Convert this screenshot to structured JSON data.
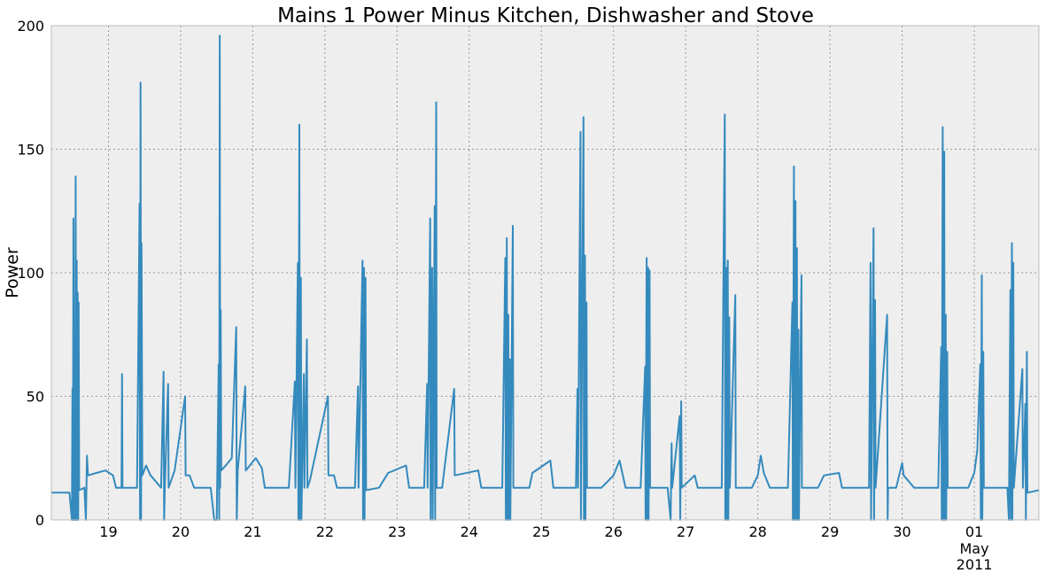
{
  "chart_data": {
    "type": "line",
    "title": "Mains 1 Power Minus Kitchen, Dishwasher and Stove",
    "xlabel": "",
    "ylabel": "Power",
    "ylim": [
      0,
      200
    ],
    "xlim": [
      "2011-04-18T05:00",
      "2011-05-01T21:30"
    ],
    "grid": true,
    "legend": "none",
    "background_color": "#eeeeee",
    "line_color": "#348abd",
    "y_ticks": [
      0,
      50,
      100,
      150,
      200
    ],
    "x_ticks": [
      {
        "at": "2011-04-19",
        "label": "19",
        "sublabel": ""
      },
      {
        "at": "2011-04-20",
        "label": "20",
        "sublabel": ""
      },
      {
        "at": "2011-04-21",
        "label": "21",
        "sublabel": ""
      },
      {
        "at": "2011-04-22",
        "label": "22",
        "sublabel": ""
      },
      {
        "at": "2011-04-23",
        "label": "23",
        "sublabel": ""
      },
      {
        "at": "2011-04-24",
        "label": "24",
        "sublabel": ""
      },
      {
        "at": "2011-04-25",
        "label": "25",
        "sublabel": ""
      },
      {
        "at": "2011-04-26",
        "label": "26",
        "sublabel": ""
      },
      {
        "at": "2011-04-27",
        "label": "27",
        "sublabel": ""
      },
      {
        "at": "2011-04-28",
        "label": "28",
        "sublabel": ""
      },
      {
        "at": "2011-04-29",
        "label": "29",
        "sublabel": ""
      },
      {
        "at": "2011-04-30",
        "label": "30",
        "sublabel": ""
      },
      {
        "at": "2011-05-01",
        "label": "01",
        "sublabel": "May\n2011"
      }
    ],
    "series": [
      {
        "name": "",
        "points": [
          [
            "2011-04-18T05:00",
            11
          ],
          [
            "2011-04-18T11:00",
            11
          ],
          [
            "2011-04-18T11:50",
            0
          ],
          [
            "2011-04-18T12:00",
            53
          ],
          [
            "2011-04-18T12:10",
            0
          ],
          [
            "2011-04-18T12:20",
            122
          ],
          [
            "2011-04-18T12:30",
            0
          ],
          [
            "2011-04-18T12:40",
            65
          ],
          [
            "2011-04-18T12:55",
            0
          ],
          [
            "2011-04-18T13:05",
            139
          ],
          [
            "2011-04-18T13:15",
            0
          ],
          [
            "2011-04-18T13:25",
            105
          ],
          [
            "2011-04-18T13:35",
            0
          ],
          [
            "2011-04-18T13:45",
            92
          ],
          [
            "2011-04-18T13:55",
            0
          ],
          [
            "2011-04-18T14:05",
            88
          ],
          [
            "2011-04-18T14:15",
            12
          ],
          [
            "2011-04-18T16:00",
            13
          ],
          [
            "2011-04-18T16:30",
            0
          ],
          [
            "2011-04-18T16:50",
            26
          ],
          [
            "2011-04-18T17:10",
            18
          ],
          [
            "2011-04-18T20:00",
            19
          ],
          [
            "2011-04-18T23:00",
            20
          ],
          [
            "2011-04-19T01:30",
            18
          ],
          [
            "2011-04-19T02:30",
            13
          ],
          [
            "2011-04-19T04:20",
            13
          ],
          [
            "2011-04-19T04:30",
            59
          ],
          [
            "2011-04-19T04:40",
            13
          ],
          [
            "2011-04-19T09:30",
            13
          ],
          [
            "2011-04-19T10:20",
            128
          ],
          [
            "2011-04-19T10:30",
            0
          ],
          [
            "2011-04-19T10:40",
            177
          ],
          [
            "2011-04-19T10:50",
            0
          ],
          [
            "2011-04-19T11:00",
            112
          ],
          [
            "2011-04-19T11:15",
            18
          ],
          [
            "2011-04-19T12:30",
            22
          ],
          [
            "2011-04-19T14:00",
            18
          ],
          [
            "2011-04-19T17:30",
            13
          ],
          [
            "2011-04-19T18:20",
            60
          ],
          [
            "2011-04-19T18:30",
            0
          ],
          [
            "2011-04-19T18:45",
            13
          ],
          [
            "2011-04-19T19:50",
            55
          ],
          [
            "2011-04-19T20:00",
            13
          ],
          [
            "2011-04-19T22:00",
            20
          ],
          [
            "2011-04-20T01:30",
            50
          ],
          [
            "2011-04-20T01:40",
            18
          ],
          [
            "2011-04-20T03:00",
            18
          ],
          [
            "2011-04-20T04:30",
            13
          ],
          [
            "2011-04-20T10:00",
            13
          ],
          [
            "2011-04-20T11:10",
            0
          ],
          [
            "2011-04-20T12:00",
            0
          ],
          [
            "2011-04-20T12:40",
            63
          ],
          [
            "2011-04-20T12:50",
            0
          ],
          [
            "2011-04-20T13:00",
            196
          ],
          [
            "2011-04-20T13:10",
            13
          ],
          [
            "2011-04-20T13:20",
            85
          ],
          [
            "2011-04-20T13:30",
            20
          ],
          [
            "2011-04-20T15:00",
            22
          ],
          [
            "2011-04-20T17:00",
            25
          ],
          [
            "2011-04-20T18:30",
            78
          ],
          [
            "2011-04-20T18:40",
            0
          ],
          [
            "2011-04-20T19:00",
            20
          ],
          [
            "2011-04-20T21:30",
            54
          ],
          [
            "2011-04-20T21:40",
            20
          ],
          [
            "2011-04-21T01:00",
            25
          ],
          [
            "2011-04-21T03:00",
            21
          ],
          [
            "2011-04-21T04:00",
            13
          ],
          [
            "2011-04-21T12:00",
            13
          ],
          [
            "2011-04-21T14:00",
            56
          ],
          [
            "2011-04-21T14:10",
            13
          ],
          [
            "2011-04-21T15:00",
            104
          ],
          [
            "2011-04-21T15:10",
            0
          ],
          [
            "2011-04-21T15:30",
            160
          ],
          [
            "2011-04-21T15:40",
            0
          ],
          [
            "2011-04-21T16:00",
            98
          ],
          [
            "2011-04-21T16:10",
            0
          ],
          [
            "2011-04-21T17:00",
            59
          ],
          [
            "2011-04-21T17:10",
            13
          ],
          [
            "2011-04-21T18:00",
            73
          ],
          [
            "2011-04-21T18:10",
            13
          ],
          [
            "2011-04-21T19:00",
            16
          ],
          [
            "2011-04-22T01:00",
            50
          ],
          [
            "2011-04-22T01:10",
            18
          ],
          [
            "2011-04-22T03:00",
            18
          ],
          [
            "2011-04-22T04:00",
            13
          ],
          [
            "2011-04-22T10:00",
            13
          ],
          [
            "2011-04-22T11:00",
            54
          ],
          [
            "2011-04-22T11:10",
            13
          ],
          [
            "2011-04-22T12:30",
            105
          ],
          [
            "2011-04-22T12:40",
            0
          ],
          [
            "2011-04-22T13:00",
            102
          ],
          [
            "2011-04-22T13:10",
            0
          ],
          [
            "2011-04-22T13:30",
            98
          ],
          [
            "2011-04-22T13:40",
            12
          ],
          [
            "2011-04-22T18:00",
            13
          ],
          [
            "2011-04-22T21:00",
            19
          ],
          [
            "2011-04-23T03:00",
            22
          ],
          [
            "2011-04-23T04:00",
            13
          ],
          [
            "2011-04-23T09:00",
            13
          ],
          [
            "2011-04-23T10:00",
            55
          ],
          [
            "2011-04-23T10:10",
            13
          ],
          [
            "2011-04-23T11:00",
            122
          ],
          [
            "2011-04-23T11:10",
            0
          ],
          [
            "2011-04-23T11:40",
            102
          ],
          [
            "2011-04-23T11:50",
            0
          ],
          [
            "2011-04-23T12:30",
            127
          ],
          [
            "2011-04-23T12:40",
            0
          ],
          [
            "2011-04-23T13:00",
            169
          ],
          [
            "2011-04-23T13:10",
            13
          ],
          [
            "2011-04-23T15:00",
            13
          ],
          [
            "2011-04-23T19:00",
            53
          ],
          [
            "2011-04-23T19:10",
            18
          ],
          [
            "2011-04-24T03:00",
            20
          ],
          [
            "2011-04-24T04:00",
            13
          ],
          [
            "2011-04-24T11:00",
            13
          ],
          [
            "2011-04-24T12:00",
            106
          ],
          [
            "2011-04-24T12:10",
            0
          ],
          [
            "2011-04-24T12:30",
            114
          ],
          [
            "2011-04-24T12:40",
            0
          ],
          [
            "2011-04-24T13:00",
            83
          ],
          [
            "2011-04-24T13:10",
            0
          ],
          [
            "2011-04-24T13:30",
            65
          ],
          [
            "2011-04-24T13:40",
            0
          ],
          [
            "2011-04-24T14:30",
            119
          ],
          [
            "2011-04-24T14:40",
            13
          ],
          [
            "2011-04-24T20:00",
            13
          ],
          [
            "2011-04-24T21:00",
            19
          ],
          [
            "2011-04-25T03:00",
            24
          ],
          [
            "2011-04-25T04:00",
            13
          ],
          [
            "2011-04-25T11:30",
            13
          ],
          [
            "2011-04-25T12:00",
            53
          ],
          [
            "2011-04-25T12:10",
            13
          ],
          [
            "2011-04-25T13:00",
            157
          ],
          [
            "2011-04-25T13:10",
            0
          ],
          [
            "2011-04-25T14:00",
            163
          ],
          [
            "2011-04-25T14:10",
            0
          ],
          [
            "2011-04-25T14:30",
            107
          ],
          [
            "2011-04-25T14:40",
            0
          ],
          [
            "2011-04-25T15:00",
            88
          ],
          [
            "2011-04-25T15:10",
            13
          ],
          [
            "2011-04-25T20:00",
            13
          ],
          [
            "2011-04-26T00:00",
            18
          ],
          [
            "2011-04-26T02:00",
            24
          ],
          [
            "2011-04-26T04:00",
            13
          ],
          [
            "2011-04-26T09:00",
            13
          ],
          [
            "2011-04-26T10:30",
            62
          ],
          [
            "2011-04-26T10:40",
            0
          ],
          [
            "2011-04-26T11:00",
            106
          ],
          [
            "2011-04-26T11:10",
            0
          ],
          [
            "2011-04-26T11:30",
            102
          ],
          [
            "2011-04-26T11:40",
            0
          ],
          [
            "2011-04-26T12:00",
            101
          ],
          [
            "2011-04-26T12:10",
            13
          ],
          [
            "2011-04-26T18:00",
            13
          ],
          [
            "2011-04-26T19:00",
            0
          ],
          [
            "2011-04-26T19:20",
            31
          ],
          [
            "2011-04-26T19:30",
            13
          ],
          [
            "2011-04-26T22:00",
            42
          ],
          [
            "2011-04-26T22:10",
            0
          ],
          [
            "2011-04-26T22:30",
            48
          ],
          [
            "2011-04-26T22:40",
            13
          ],
          [
            "2011-04-27T03:00",
            18
          ],
          [
            "2011-04-27T04:00",
            13
          ],
          [
            "2011-04-27T12:00",
            13
          ],
          [
            "2011-04-27T13:00",
            164
          ],
          [
            "2011-04-27T13:10",
            0
          ],
          [
            "2011-04-27T13:30",
            102
          ],
          [
            "2011-04-27T13:40",
            0
          ],
          [
            "2011-04-27T14:00",
            105
          ],
          [
            "2011-04-27T14:10",
            0
          ],
          [
            "2011-04-27T14:30",
            82
          ],
          [
            "2011-04-27T14:40",
            13
          ],
          [
            "2011-04-27T16:30",
            91
          ],
          [
            "2011-04-27T16:40",
            13
          ],
          [
            "2011-04-27T22:00",
            13
          ],
          [
            "2011-04-28T00:00",
            18
          ],
          [
            "2011-04-28T01:00",
            26
          ],
          [
            "2011-04-28T02:00",
            19
          ],
          [
            "2011-04-28T04:00",
            13
          ],
          [
            "2011-04-28T10:00",
            13
          ],
          [
            "2011-04-28T11:30",
            88
          ],
          [
            "2011-04-28T11:40",
            0
          ],
          [
            "2011-04-28T12:00",
            143
          ],
          [
            "2011-04-28T12:10",
            0
          ],
          [
            "2011-04-28T12:30",
            129
          ],
          [
            "2011-04-28T12:40",
            0
          ],
          [
            "2011-04-28T13:00",
            110
          ],
          [
            "2011-04-28T13:10",
            0
          ],
          [
            "2011-04-28T13:30",
            77
          ],
          [
            "2011-04-28T13:40",
            0
          ],
          [
            "2011-04-28T14:30",
            99
          ],
          [
            "2011-04-28T14:40",
            13
          ],
          [
            "2011-04-28T20:00",
            13
          ],
          [
            "2011-04-28T22:00",
            18
          ],
          [
            "2011-04-29T03:00",
            19
          ],
          [
            "2011-04-29T04:00",
            13
          ],
          [
            "2011-04-29T13:00",
            13
          ],
          [
            "2011-04-29T13:30",
            104
          ],
          [
            "2011-04-29T13:40",
            0
          ],
          [
            "2011-04-29T14:30",
            118
          ],
          [
            "2011-04-29T14:40",
            0
          ],
          [
            "2011-04-29T15:00",
            89
          ],
          [
            "2011-04-29T15:10",
            13
          ],
          [
            "2011-04-29T19:00",
            83
          ],
          [
            "2011-04-29T19:10",
            0
          ],
          [
            "2011-04-29T19:20",
            13
          ],
          [
            "2011-04-29T22:00",
            13
          ],
          [
            "2011-04-30T00:00",
            23
          ],
          [
            "2011-04-30T00:30",
            18
          ],
          [
            "2011-04-30T04:00",
            13
          ],
          [
            "2011-04-30T12:00",
            13
          ],
          [
            "2011-04-30T13:00",
            70
          ],
          [
            "2011-04-30T13:10",
            0
          ],
          [
            "2011-04-30T13:30",
            159
          ],
          [
            "2011-04-30T13:40",
            0
          ],
          [
            "2011-04-30T14:00",
            149
          ],
          [
            "2011-04-30T14:10",
            0
          ],
          [
            "2011-04-30T14:30",
            83
          ],
          [
            "2011-04-30T14:40",
            0
          ],
          [
            "2011-04-30T15:00",
            68
          ],
          [
            "2011-04-30T15:10",
            13
          ],
          [
            "2011-04-30T22:00",
            13
          ],
          [
            "2011-05-01T00:00",
            19
          ],
          [
            "2011-05-01T01:00",
            28
          ],
          [
            "2011-05-01T02:00",
            63
          ],
          [
            "2011-05-01T02:10",
            0
          ],
          [
            "2011-05-01T02:30",
            99
          ],
          [
            "2011-05-01T02:40",
            0
          ],
          [
            "2011-05-01T03:00",
            68
          ],
          [
            "2011-05-01T03:10",
            13
          ],
          [
            "2011-05-01T11:00",
            13
          ],
          [
            "2011-05-01T11:30",
            0
          ],
          [
            "2011-05-01T12:00",
            93
          ],
          [
            "2011-05-01T12:10",
            0
          ],
          [
            "2011-05-01T12:30",
            112
          ],
          [
            "2011-05-01T12:40",
            0
          ],
          [
            "2011-05-01T13:00",
            104
          ],
          [
            "2011-05-01T13:10",
            13
          ],
          [
            "2011-05-01T16:00",
            61
          ],
          [
            "2011-05-01T16:10",
            13
          ],
          [
            "2011-05-01T17:00",
            47
          ],
          [
            "2011-05-01T17:10",
            0
          ],
          [
            "2011-05-01T17:30",
            68
          ],
          [
            "2011-05-01T17:40",
            11
          ],
          [
            "2011-05-01T21:30",
            12
          ]
        ]
      }
    ]
  }
}
